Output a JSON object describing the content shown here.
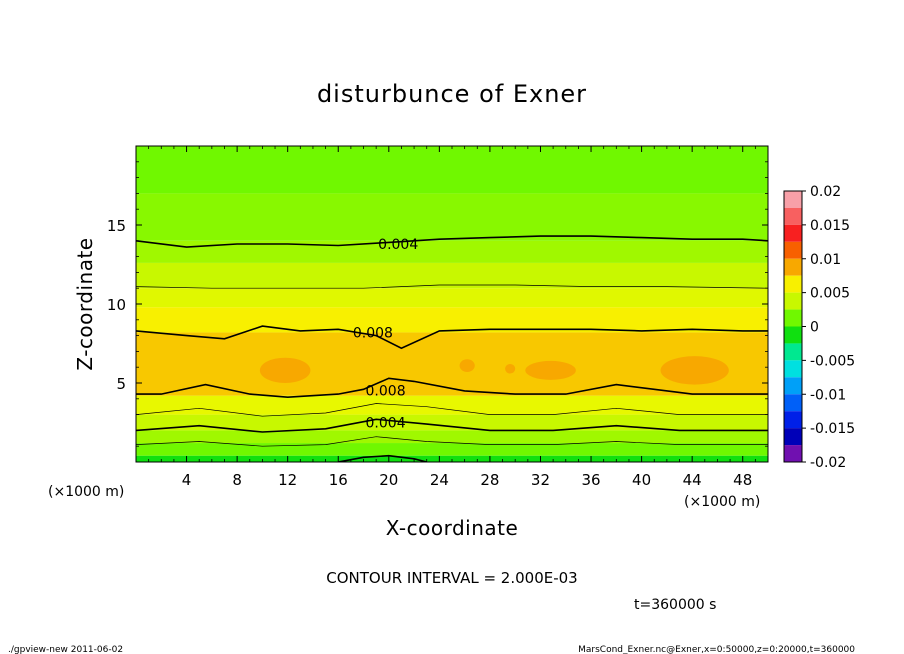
{
  "chart_data": {
    "type": "heatmap",
    "title": "disturbunce of Exner",
    "xlabel": "X-coordinate",
    "ylabel": "Z-coordinate",
    "x_unit_left": "(×1000 m)",
    "x_unit_right": "(×1000 m)",
    "xlim": [
      0,
      50
    ],
    "ylim": [
      0,
      20
    ],
    "x_ticks": [
      4,
      8,
      12,
      16,
      20,
      24,
      28,
      32,
      36,
      40,
      44,
      48
    ],
    "y_ticks": [
      5,
      10,
      15
    ],
    "colorbar": {
      "ticks": [
        "0.02",
        "0.015",
        "0.01",
        "0.005",
        "0",
        "-0.005",
        "-0.01",
        "-0.015",
        "-0.02"
      ],
      "range": [
        -0.02,
        0.02
      ],
      "levels": [
        {
          "from": 0.0175,
          "to": 0.02,
          "color": "#f8a0a8"
        },
        {
          "from": 0.015,
          "to": 0.0175,
          "color": "#f86060"
        },
        {
          "from": 0.0125,
          "to": 0.015,
          "color": "#f82020"
        },
        {
          "from": 0.01,
          "to": 0.0125,
          "color": "#f86000"
        },
        {
          "from": 0.0075,
          "to": 0.01,
          "color": "#f8a800"
        },
        {
          "from": 0.005,
          "to": 0.0075,
          "color": "#f8f000"
        },
        {
          "from": 0.0025,
          "to": 0.005,
          "color": "#c8f800"
        },
        {
          "from": 0.0,
          "to": 0.0025,
          "color": "#70f800"
        },
        {
          "from": -0.0025,
          "to": 0.0,
          "color": "#10e010"
        },
        {
          "from": -0.005,
          "to": -0.0025,
          "color": "#00e890"
        },
        {
          "from": -0.0075,
          "to": -0.005,
          "color": "#00e0e0"
        },
        {
          "from": -0.01,
          "to": -0.0075,
          "color": "#00a0f8"
        },
        {
          "from": -0.0125,
          "to": -0.01,
          "color": "#0060f8"
        },
        {
          "from": -0.015,
          "to": -0.0125,
          "color": "#0020e8"
        },
        {
          "from": -0.0175,
          "to": -0.015,
          "color": "#0000b8"
        },
        {
          "from": -0.02,
          "to": -0.0175,
          "color": "#7010b0"
        }
      ]
    },
    "bands": [
      {
        "z_from": 0.0,
        "z_to": 0.4,
        "color": "#10e010"
      },
      {
        "z_from": 0.4,
        "z_to": 1.2,
        "color": "#70f800"
      },
      {
        "z_from": 1.2,
        "z_to": 2.0,
        "color": "#a0f800"
      },
      {
        "z_from": 2.0,
        "z_to": 3.0,
        "color": "#c8f800"
      },
      {
        "z_from": 3.0,
        "z_to": 4.2,
        "color": "#e8f800"
      },
      {
        "z_from": 4.2,
        "z_to": 8.2,
        "color": "#f8c800"
      },
      {
        "z_from": 8.2,
        "z_to": 9.8,
        "color": "#f8f000"
      },
      {
        "z_from": 9.8,
        "z_to": 11.0,
        "color": "#e0f800"
      },
      {
        "z_from": 11.0,
        "z_to": 12.6,
        "color": "#c8f800"
      },
      {
        "z_from": 12.6,
        "z_to": 14.0,
        "color": "#a0f800"
      },
      {
        "z_from": 14.0,
        "z_to": 17.0,
        "color": "#88f800"
      },
      {
        "z_from": 17.0,
        "z_to": 20.0,
        "color": "#70f800"
      }
    ],
    "blobs": [
      {
        "x": 11.8,
        "z": 5.8,
        "rx": 2.0,
        "rz": 0.8,
        "color": "#f8a800"
      },
      {
        "x": 32.8,
        "z": 5.8,
        "rx": 2.0,
        "rz": 0.6,
        "color": "#f8a800"
      },
      {
        "x": 44.2,
        "z": 5.8,
        "rx": 2.7,
        "rz": 0.9,
        "color": "#f8a800"
      },
      {
        "x": 26.2,
        "z": 6.1,
        "rx": 0.6,
        "rz": 0.4,
        "color": "#f8a800"
      },
      {
        "x": 29.6,
        "z": 5.9,
        "rx": 0.4,
        "rz": 0.3,
        "color": "#f8a800"
      }
    ],
    "contours": [
      {
        "value": 0.004,
        "label": "0.004",
        "label_x": 19.0,
        "heavy": true,
        "points": [
          [
            0,
            14.0
          ],
          [
            4,
            13.6
          ],
          [
            8,
            13.8
          ],
          [
            12,
            13.8
          ],
          [
            16,
            13.7
          ],
          [
            20,
            13.9
          ],
          [
            24,
            14.1
          ],
          [
            28,
            14.2
          ],
          [
            32,
            14.3
          ],
          [
            36,
            14.3
          ],
          [
            40,
            14.2
          ],
          [
            44,
            14.1
          ],
          [
            48,
            14.1
          ],
          [
            50,
            14.0
          ]
        ]
      },
      {
        "value": 0.006,
        "label": "",
        "label_x": 0,
        "heavy": false,
        "points": [
          [
            0,
            11.1
          ],
          [
            6,
            11.0
          ],
          [
            12,
            11.0
          ],
          [
            18,
            11.0
          ],
          [
            24,
            11.2
          ],
          [
            30,
            11.2
          ],
          [
            36,
            11.1
          ],
          [
            42,
            11.1
          ],
          [
            50,
            11.0
          ]
        ]
      },
      {
        "value": 0.008,
        "label": "0.008",
        "label_x": 17.0,
        "heavy": true,
        "points": [
          [
            0,
            8.3
          ],
          [
            4,
            8.0
          ],
          [
            7,
            7.8
          ],
          [
            10,
            8.6
          ],
          [
            13,
            8.3
          ],
          [
            16,
            8.4
          ],
          [
            19,
            8.0
          ],
          [
            21,
            7.2
          ],
          [
            24,
            8.3
          ],
          [
            28,
            8.4
          ],
          [
            32,
            8.4
          ],
          [
            36,
            8.4
          ],
          [
            40,
            8.3
          ],
          [
            44,
            8.4
          ],
          [
            48,
            8.3
          ],
          [
            50,
            8.3
          ]
        ]
      },
      {
        "value": 0.008,
        "label": "0.008",
        "label_x": 18.0,
        "heavy": true,
        "points": [
          [
            0,
            4.3
          ],
          [
            2,
            4.3
          ],
          [
            5.5,
            4.9
          ],
          [
            9,
            4.3
          ],
          [
            12,
            4.1
          ],
          [
            16,
            4.3
          ],
          [
            18,
            4.6
          ],
          [
            20,
            5.3
          ],
          [
            22,
            5.1
          ],
          [
            26,
            4.5
          ],
          [
            30,
            4.3
          ],
          [
            34,
            4.3
          ],
          [
            38,
            4.9
          ],
          [
            41,
            4.6
          ],
          [
            44,
            4.3
          ],
          [
            48,
            4.3
          ],
          [
            50,
            4.3
          ]
        ]
      },
      {
        "value": 0.006,
        "label": "",
        "label_x": 0,
        "heavy": false,
        "points": [
          [
            0,
            3.0
          ],
          [
            5,
            3.4
          ],
          [
            10,
            2.9
          ],
          [
            15,
            3.1
          ],
          [
            19,
            3.7
          ],
          [
            23,
            3.5
          ],
          [
            28,
            3.0
          ],
          [
            33,
            3.0
          ],
          [
            38,
            3.4
          ],
          [
            43,
            3.0
          ],
          [
            48,
            3.0
          ],
          [
            50,
            3.0
          ]
        ]
      },
      {
        "value": 0.004,
        "label": "0.004",
        "label_x": 18.0,
        "heavy": true,
        "points": [
          [
            0,
            2.0
          ],
          [
            5,
            2.3
          ],
          [
            10,
            1.9
          ],
          [
            15,
            2.1
          ],
          [
            19,
            2.7
          ],
          [
            23,
            2.4
          ],
          [
            28,
            2.0
          ],
          [
            33,
            2.0
          ],
          [
            38,
            2.3
          ],
          [
            43,
            2.0
          ],
          [
            48,
            2.0
          ],
          [
            50,
            2.0
          ]
        ]
      },
      {
        "value": 0.002,
        "label": "",
        "label_x": 0,
        "heavy": false,
        "points": [
          [
            0,
            1.1
          ],
          [
            5,
            1.3
          ],
          [
            10,
            1.0
          ],
          [
            15,
            1.1
          ],
          [
            19,
            1.6
          ],
          [
            23,
            1.3
          ],
          [
            28,
            1.1
          ],
          [
            33,
            1.1
          ],
          [
            38,
            1.3
          ],
          [
            43,
            1.1
          ],
          [
            48,
            1.1
          ],
          [
            50,
            1.1
          ]
        ]
      },
      {
        "value": 0.0,
        "label": "",
        "label_x": 0,
        "heavy": true,
        "points": [
          [
            16,
            0.0
          ],
          [
            18,
            0.3
          ],
          [
            20,
            0.4
          ],
          [
            22,
            0.2
          ],
          [
            23,
            0.0
          ]
        ]
      }
    ],
    "contour_interval_text": "CONTOUR INTERVAL = 2.000E-03",
    "time_text": "t=360000 s",
    "footer_left": "./gpview-new   2011-06-02",
    "footer_right": "MarsCond_Exner.nc@Exner,x=0:50000,z=0:20000,t=360000"
  }
}
